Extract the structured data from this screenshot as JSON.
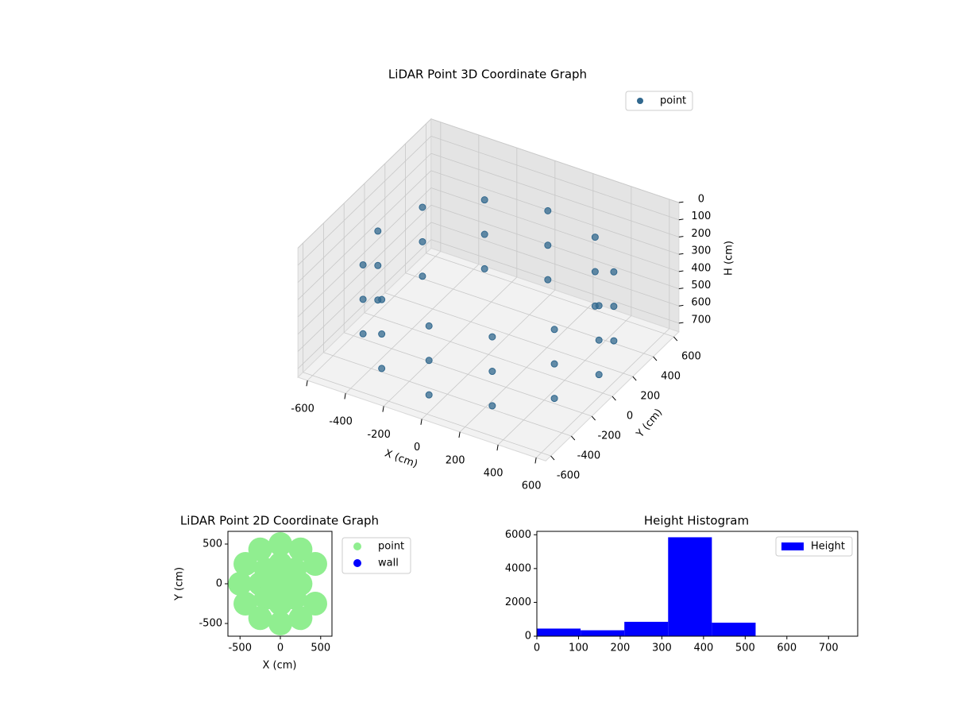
{
  "chart_data": [
    {
      "type": "scatter3d",
      "title": "LiDAR Point 3D Coordinate Graph",
      "xlabel": "X (cm)",
      "ylabel": "Y (cm)",
      "zlabel": "H (cm)",
      "xlim": [
        -650,
        650
      ],
      "ylim": [
        -650,
        650
      ],
      "zlim": [
        0,
        750
      ],
      "z_inverted": true,
      "xticks": [
        -600,
        -400,
        -200,
        0,
        200,
        400,
        600
      ],
      "yticks": [
        -600,
        -400,
        -200,
        0,
        200,
        400,
        600
      ],
      "zticks": [
        0,
        100,
        200,
        300,
        400,
        500,
        600,
        700
      ],
      "grid": true,
      "legend": "upper right",
      "series": [
        {
          "name": "point",
          "color": "#31688e",
          "x": [
            580,
            502,
            290,
            0,
            -290,
            -502,
            -580,
            -502,
            -290,
            0,
            290,
            502,
            580,
            502,
            290,
            0,
            -290,
            -502,
            -580,
            -502,
            -290,
            0,
            290,
            502,
            580,
            502,
            290,
            0,
            -290,
            -502,
            -580,
            -502,
            -290,
            0,
            290,
            502
          ],
          "y": [
            0,
            290,
            502,
            580,
            502,
            290,
            0,
            -290,
            -502,
            -580,
            -502,
            -290,
            0,
            290,
            502,
            580,
            502,
            290,
            0,
            -290,
            -502,
            -580,
            -502,
            -290,
            0,
            290,
            502,
            580,
            502,
            290,
            0,
            -290,
            -502,
            -580,
            -502,
            -290
          ],
          "z": [
            250,
            250,
            250,
            250,
            250,
            250,
            250,
            250,
            250,
            250,
            250,
            250,
            450,
            450,
            450,
            450,
            450,
            450,
            450,
            450,
            450,
            450,
            450,
            450,
            650,
            650,
            650,
            650,
            650,
            650,
            650,
            650,
            650,
            650,
            650,
            650
          ]
        }
      ]
    },
    {
      "type": "scatter",
      "title": "LiDAR Point 2D Coordinate Graph",
      "xlabel": "X (cm)",
      "ylabel": "Y (cm)",
      "xlim": [
        -650,
        640
      ],
      "ylim": [
        -660,
        660
      ],
      "xticks": [
        -500,
        0,
        500
      ],
      "yticks": [
        -500,
        0,
        500
      ],
      "legend": "outside right",
      "series": [
        {
          "name": "point",
          "color": "#90ee90",
          "x": [
            0,
            250,
            177,
            0,
            -177,
            -250,
            -177,
            0,
            177,
            433,
            250,
            0,
            -250,
            -433,
            -500,
            -433,
            -250,
            0,
            250,
            433
          ],
          "y": [
            0,
            0,
            177,
            250,
            177,
            0,
            -177,
            -250,
            -177,
            250,
            433,
            500,
            433,
            250,
            0,
            -250,
            -433,
            -500,
            -433,
            -250
          ]
        },
        {
          "name": "wall",
          "color": "#0000ff",
          "x": [],
          "y": []
        }
      ]
    },
    {
      "type": "histogram",
      "title": "Height Histogram",
      "bins": [
        0,
        105,
        210,
        315,
        420,
        525,
        630,
        735
      ],
      "xlim": [
        0,
        770
      ],
      "ylim": [
        0,
        6200
      ],
      "xticks": [
        0,
        100,
        200,
        300,
        400,
        500,
        600,
        700
      ],
      "yticks": [
        0,
        2000,
        4000,
        6000
      ],
      "legend": "upper right",
      "series": [
        {
          "name": "Height",
          "color": "#0000ff",
          "values": [
            450,
            350,
            850,
            5850,
            800,
            15,
            5
          ]
        }
      ]
    }
  ]
}
